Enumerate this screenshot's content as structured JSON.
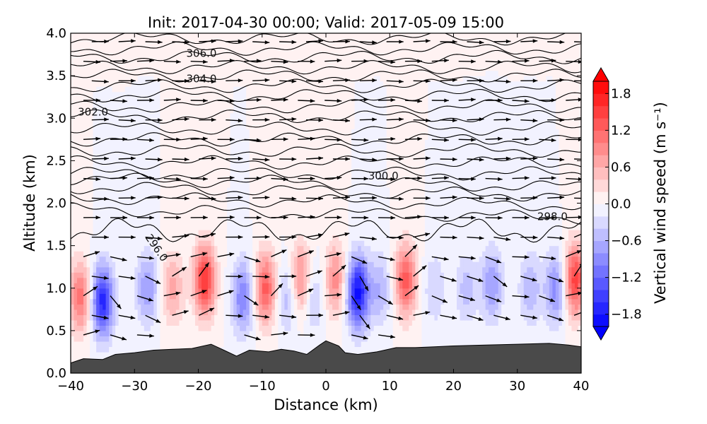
{
  "chart_data": {
    "type": "heatmap",
    "title": "Init: 2017-04-30 00:00; Valid: 2017-05-09 15:00",
    "xlabel": "Distance (km)",
    "ylabel": "Altitude (km)",
    "xlim": [
      -40,
      40
    ],
    "ylim": [
      0.0,
      4.0
    ],
    "x_ticks": [
      -40,
      -30,
      -20,
      -10,
      0,
      10,
      20,
      30,
      40
    ],
    "x_tick_labels": [
      "−40",
      "−30",
      "−20",
      "−10",
      "0",
      "10",
      "20",
      "30",
      "40"
    ],
    "y_ticks": [
      0.0,
      0.5,
      1.0,
      1.5,
      2.0,
      2.5,
      3.0,
      3.5,
      4.0
    ],
    "y_tick_labels": [
      "0.0",
      "0.5",
      "1.0",
      "1.5",
      "2.0",
      "2.5",
      "3.0",
      "3.5",
      "4.0"
    ],
    "colorbar": {
      "label": "Vertical wind speed (m s⁻¹)",
      "range": [
        -2.0,
        2.0
      ],
      "ticks": [
        1.8,
        1.2,
        0.6,
        0.0,
        -0.6,
        -1.2,
        -1.8
      ],
      "tick_labels": [
        "1.8",
        "1.2",
        "0.6",
        "0.0",
        "−0.6",
        "−1.2",
        "−1.8"
      ],
      "colormap": "bwr"
    },
    "vertical_wind_cells": [
      {
        "x": -38.5,
        "z": 0.9,
        "w": 1.1
      },
      {
        "x": -35,
        "z": 0.85,
        "w": -1.7
      },
      {
        "x": -28,
        "z": 1.0,
        "w": -0.8
      },
      {
        "x": -24,
        "z": 1.0,
        "w": 0.7
      },
      {
        "x": -19,
        "z": 1.1,
        "w": 1.6
      },
      {
        "x": -13,
        "z": 0.9,
        "w": -1.0
      },
      {
        "x": -9.5,
        "z": 1.0,
        "w": 1.3
      },
      {
        "x": -6,
        "z": 0.9,
        "w": -0.6
      },
      {
        "x": -4,
        "z": 1.1,
        "w": 1.0
      },
      {
        "x": -2,
        "z": 0.9,
        "w": -0.5
      },
      {
        "x": 1.5,
        "z": 1.1,
        "w": 0.9
      },
      {
        "x": 5,
        "z": 0.95,
        "w": -1.9
      },
      {
        "x": 8.5,
        "z": 1.0,
        "w": -0.6
      },
      {
        "x": 12.5,
        "z": 1.1,
        "w": 1.3
      },
      {
        "x": 17,
        "z": 1.0,
        "w": -0.4
      },
      {
        "x": 22,
        "z": 1.0,
        "w": -0.5
      },
      {
        "x": 26,
        "z": 1.05,
        "w": -0.8
      },
      {
        "x": 32,
        "z": 1.0,
        "w": -0.6
      },
      {
        "x": 36,
        "z": 1.0,
        "w": -0.9
      },
      {
        "x": 39,
        "z": 1.1,
        "w": 1.5
      }
    ],
    "theta_contours": [
      {
        "level": 296.0,
        "label": "296.0",
        "label_x": -27,
        "label_z": 1.45
      },
      {
        "level": 298.0,
        "label": "298.0",
        "label_x": 35.5,
        "label_z": 1.8
      },
      {
        "level": 300.0,
        "label": "300.0",
        "label_x": 9,
        "label_z": 2.28
      },
      {
        "level": 302.0,
        "label": "302.0",
        "label_x": -36.5,
        "label_z": 3.03
      },
      {
        "level": 304.0,
        "label": "304.0",
        "label_x": -19.5,
        "label_z": 3.42
      },
      {
        "level": 306.0,
        "label": "306.0",
        "label_x": -19.5,
        "label_z": 3.72
      }
    ],
    "terrain_height_km": [
      [
        -40,
        0.12
      ],
      [
        -38,
        0.17
      ],
      [
        -35,
        0.16
      ],
      [
        -33,
        0.22
      ],
      [
        -30,
        0.24
      ],
      [
        -27,
        0.27
      ],
      [
        -24,
        0.28
      ],
      [
        -21,
        0.29
      ],
      [
        -18,
        0.34
      ],
      [
        -16,
        0.27
      ],
      [
        -14,
        0.2
      ],
      [
        -12,
        0.27
      ],
      [
        -9,
        0.25
      ],
      [
        -7,
        0.28
      ],
      [
        -5,
        0.26
      ],
      [
        -3,
        0.22
      ],
      [
        -1,
        0.33
      ],
      [
        0,
        0.38
      ],
      [
        2,
        0.32
      ],
      [
        3,
        0.24
      ],
      [
        5,
        0.22
      ],
      [
        8,
        0.25
      ],
      [
        11,
        0.3
      ],
      [
        14,
        0.3
      ],
      [
        17,
        0.31
      ],
      [
        20,
        0.32
      ],
      [
        25,
        0.33
      ],
      [
        30,
        0.34
      ],
      [
        35,
        0.35
      ],
      [
        38,
        0.33
      ],
      [
        40,
        0.31
      ]
    ]
  }
}
